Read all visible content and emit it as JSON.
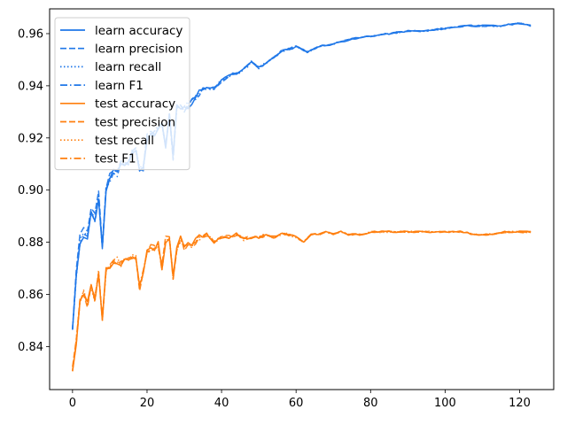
{
  "chart_data": {
    "type": "line",
    "title": "",
    "xlabel": "",
    "ylabel": "",
    "xlim": [
      -6.15,
      129.15
    ],
    "ylim": [
      0.8235,
      0.9695
    ],
    "xticks": [
      0,
      20,
      40,
      60,
      80,
      100,
      120
    ],
    "yticks": [
      0.84,
      0.86,
      0.88,
      0.9,
      0.92,
      0.94,
      0.96
    ],
    "ytick_labels": [
      "0.84",
      "0.86",
      "0.88",
      "0.90",
      "0.92",
      "0.94",
      "0.96"
    ],
    "grid": false,
    "legend_position": "top-left",
    "colors": {
      "learn": "#1f77e8",
      "test": "#ff7f0e"
    },
    "keypoints": {
      "learn": [
        [
          0,
          0.846
        ],
        [
          1,
          0.866
        ],
        [
          2,
          0.88
        ],
        [
          3,
          0.883
        ],
        [
          4,
          0.882
        ],
        [
          5,
          0.891
        ],
        [
          6,
          0.889
        ],
        [
          7,
          0.897
        ],
        [
          8,
          0.877
        ],
        [
          9,
          0.9
        ],
        [
          10,
          0.904
        ],
        [
          11,
          0.907
        ],
        [
          12,
          0.906
        ],
        [
          13,
          0.91
        ],
        [
          14,
          0.91
        ],
        [
          15,
          0.911
        ],
        [
          16,
          0.914
        ],
        [
          17,
          0.915
        ],
        [
          18,
          0.908
        ],
        [
          19,
          0.908
        ],
        [
          20,
          0.92
        ],
        [
          22,
          0.922
        ],
        [
          24,
          0.926
        ],
        [
          25,
          0.916
        ],
        [
          26,
          0.929
        ],
        [
          27,
          0.913
        ],
        [
          28,
          0.932
        ],
        [
          30,
          0.931
        ],
        [
          32,
          0.934
        ],
        [
          35,
          0.939
        ],
        [
          38,
          0.939
        ],
        [
          40,
          0.942
        ],
        [
          42,
          0.944
        ],
        [
          45,
          0.945
        ],
        [
          48,
          0.949
        ],
        [
          50,
          0.947
        ],
        [
          53,
          0.95
        ],
        [
          56,
          0.953
        ],
        [
          60,
          0.955
        ],
        [
          63,
          0.953
        ],
        [
          66,
          0.955
        ],
        [
          70,
          0.956
        ],
        [
          75,
          0.958
        ],
        [
          80,
          0.959
        ],
        [
          85,
          0.96
        ],
        [
          90,
          0.961
        ],
        [
          95,
          0.961
        ],
        [
          100,
          0.962
        ],
        [
          105,
          0.963
        ],
        [
          110,
          0.963
        ],
        [
          115,
          0.963
        ],
        [
          120,
          0.964
        ],
        [
          123,
          0.963
        ]
      ],
      "test": [
        [
          0,
          0.831
        ],
        [
          1,
          0.842
        ],
        [
          2,
          0.857
        ],
        [
          3,
          0.861
        ],
        [
          4,
          0.856
        ],
        [
          5,
          0.864
        ],
        [
          6,
          0.858
        ],
        [
          7,
          0.868
        ],
        [
          8,
          0.85
        ],
        [
          9,
          0.87
        ],
        [
          10,
          0.871
        ],
        [
          11,
          0.872
        ],
        [
          12,
          0.873
        ],
        [
          13,
          0.872
        ],
        [
          14,
          0.873
        ],
        [
          15,
          0.874
        ],
        [
          16,
          0.875
        ],
        [
          17,
          0.874
        ],
        [
          18,
          0.863
        ],
        [
          19,
          0.869
        ],
        [
          20,
          0.877
        ],
        [
          21,
          0.878
        ],
        [
          22,
          0.878
        ],
        [
          23,
          0.879
        ],
        [
          24,
          0.87
        ],
        [
          25,
          0.881
        ],
        [
          26,
          0.882
        ],
        [
          27,
          0.867
        ],
        [
          28,
          0.878
        ],
        [
          29,
          0.881
        ],
        [
          30,
          0.878
        ],
        [
          32,
          0.879
        ],
        [
          34,
          0.882
        ],
        [
          36,
          0.883
        ],
        [
          38,
          0.88
        ],
        [
          40,
          0.882
        ],
        [
          42,
          0.882
        ],
        [
          44,
          0.883
        ],
        [
          46,
          0.881
        ],
        [
          48,
          0.882
        ],
        [
          50,
          0.882
        ],
        [
          52,
          0.883
        ],
        [
          54,
          0.882
        ],
        [
          56,
          0.883
        ],
        [
          58,
          0.883
        ],
        [
          60,
          0.882
        ],
        [
          62,
          0.88
        ],
        [
          64,
          0.883
        ],
        [
          66,
          0.883
        ],
        [
          68,
          0.884
        ],
        [
          70,
          0.883
        ],
        [
          72,
          0.884
        ],
        [
          74,
          0.883
        ],
        [
          76,
          0.883
        ],
        [
          78,
          0.883
        ],
        [
          80,
          0.884
        ],
        [
          84,
          0.884
        ],
        [
          88,
          0.884
        ],
        [
          92,
          0.884
        ],
        [
          96,
          0.884
        ],
        [
          100,
          0.884
        ],
        [
          104,
          0.884
        ],
        [
          108,
          0.883
        ],
        [
          112,
          0.883
        ],
        [
          116,
          0.884
        ],
        [
          120,
          0.884
        ],
        [
          123,
          0.884
        ]
      ]
    },
    "series": [
      {
        "name": "learn accuracy",
        "group": "learn",
        "dash": "solid",
        "noise_seed": 11,
        "amp": 1.0
      },
      {
        "name": "learn precision",
        "group": "learn",
        "dash": "dashed",
        "noise_seed": 23,
        "amp": 1.2
      },
      {
        "name": "learn recall",
        "group": "learn",
        "dash": "dotted",
        "noise_seed": 37,
        "amp": 1.0
      },
      {
        "name": "learn F1",
        "group": "learn",
        "dash": "dashdot",
        "noise_seed": 41,
        "amp": 0.9
      },
      {
        "name": "test accuracy",
        "group": "test",
        "dash": "solid",
        "noise_seed": 53,
        "amp": 1.0
      },
      {
        "name": "test precision",
        "group": "test",
        "dash": "dashed",
        "noise_seed": 67,
        "amp": 1.2
      },
      {
        "name": "test recall",
        "group": "test",
        "dash": "dotted",
        "noise_seed": 79,
        "amp": 1.0
      },
      {
        "name": "test F1",
        "group": "test",
        "dash": "dashdot",
        "noise_seed": 83,
        "amp": 0.9
      }
    ]
  }
}
